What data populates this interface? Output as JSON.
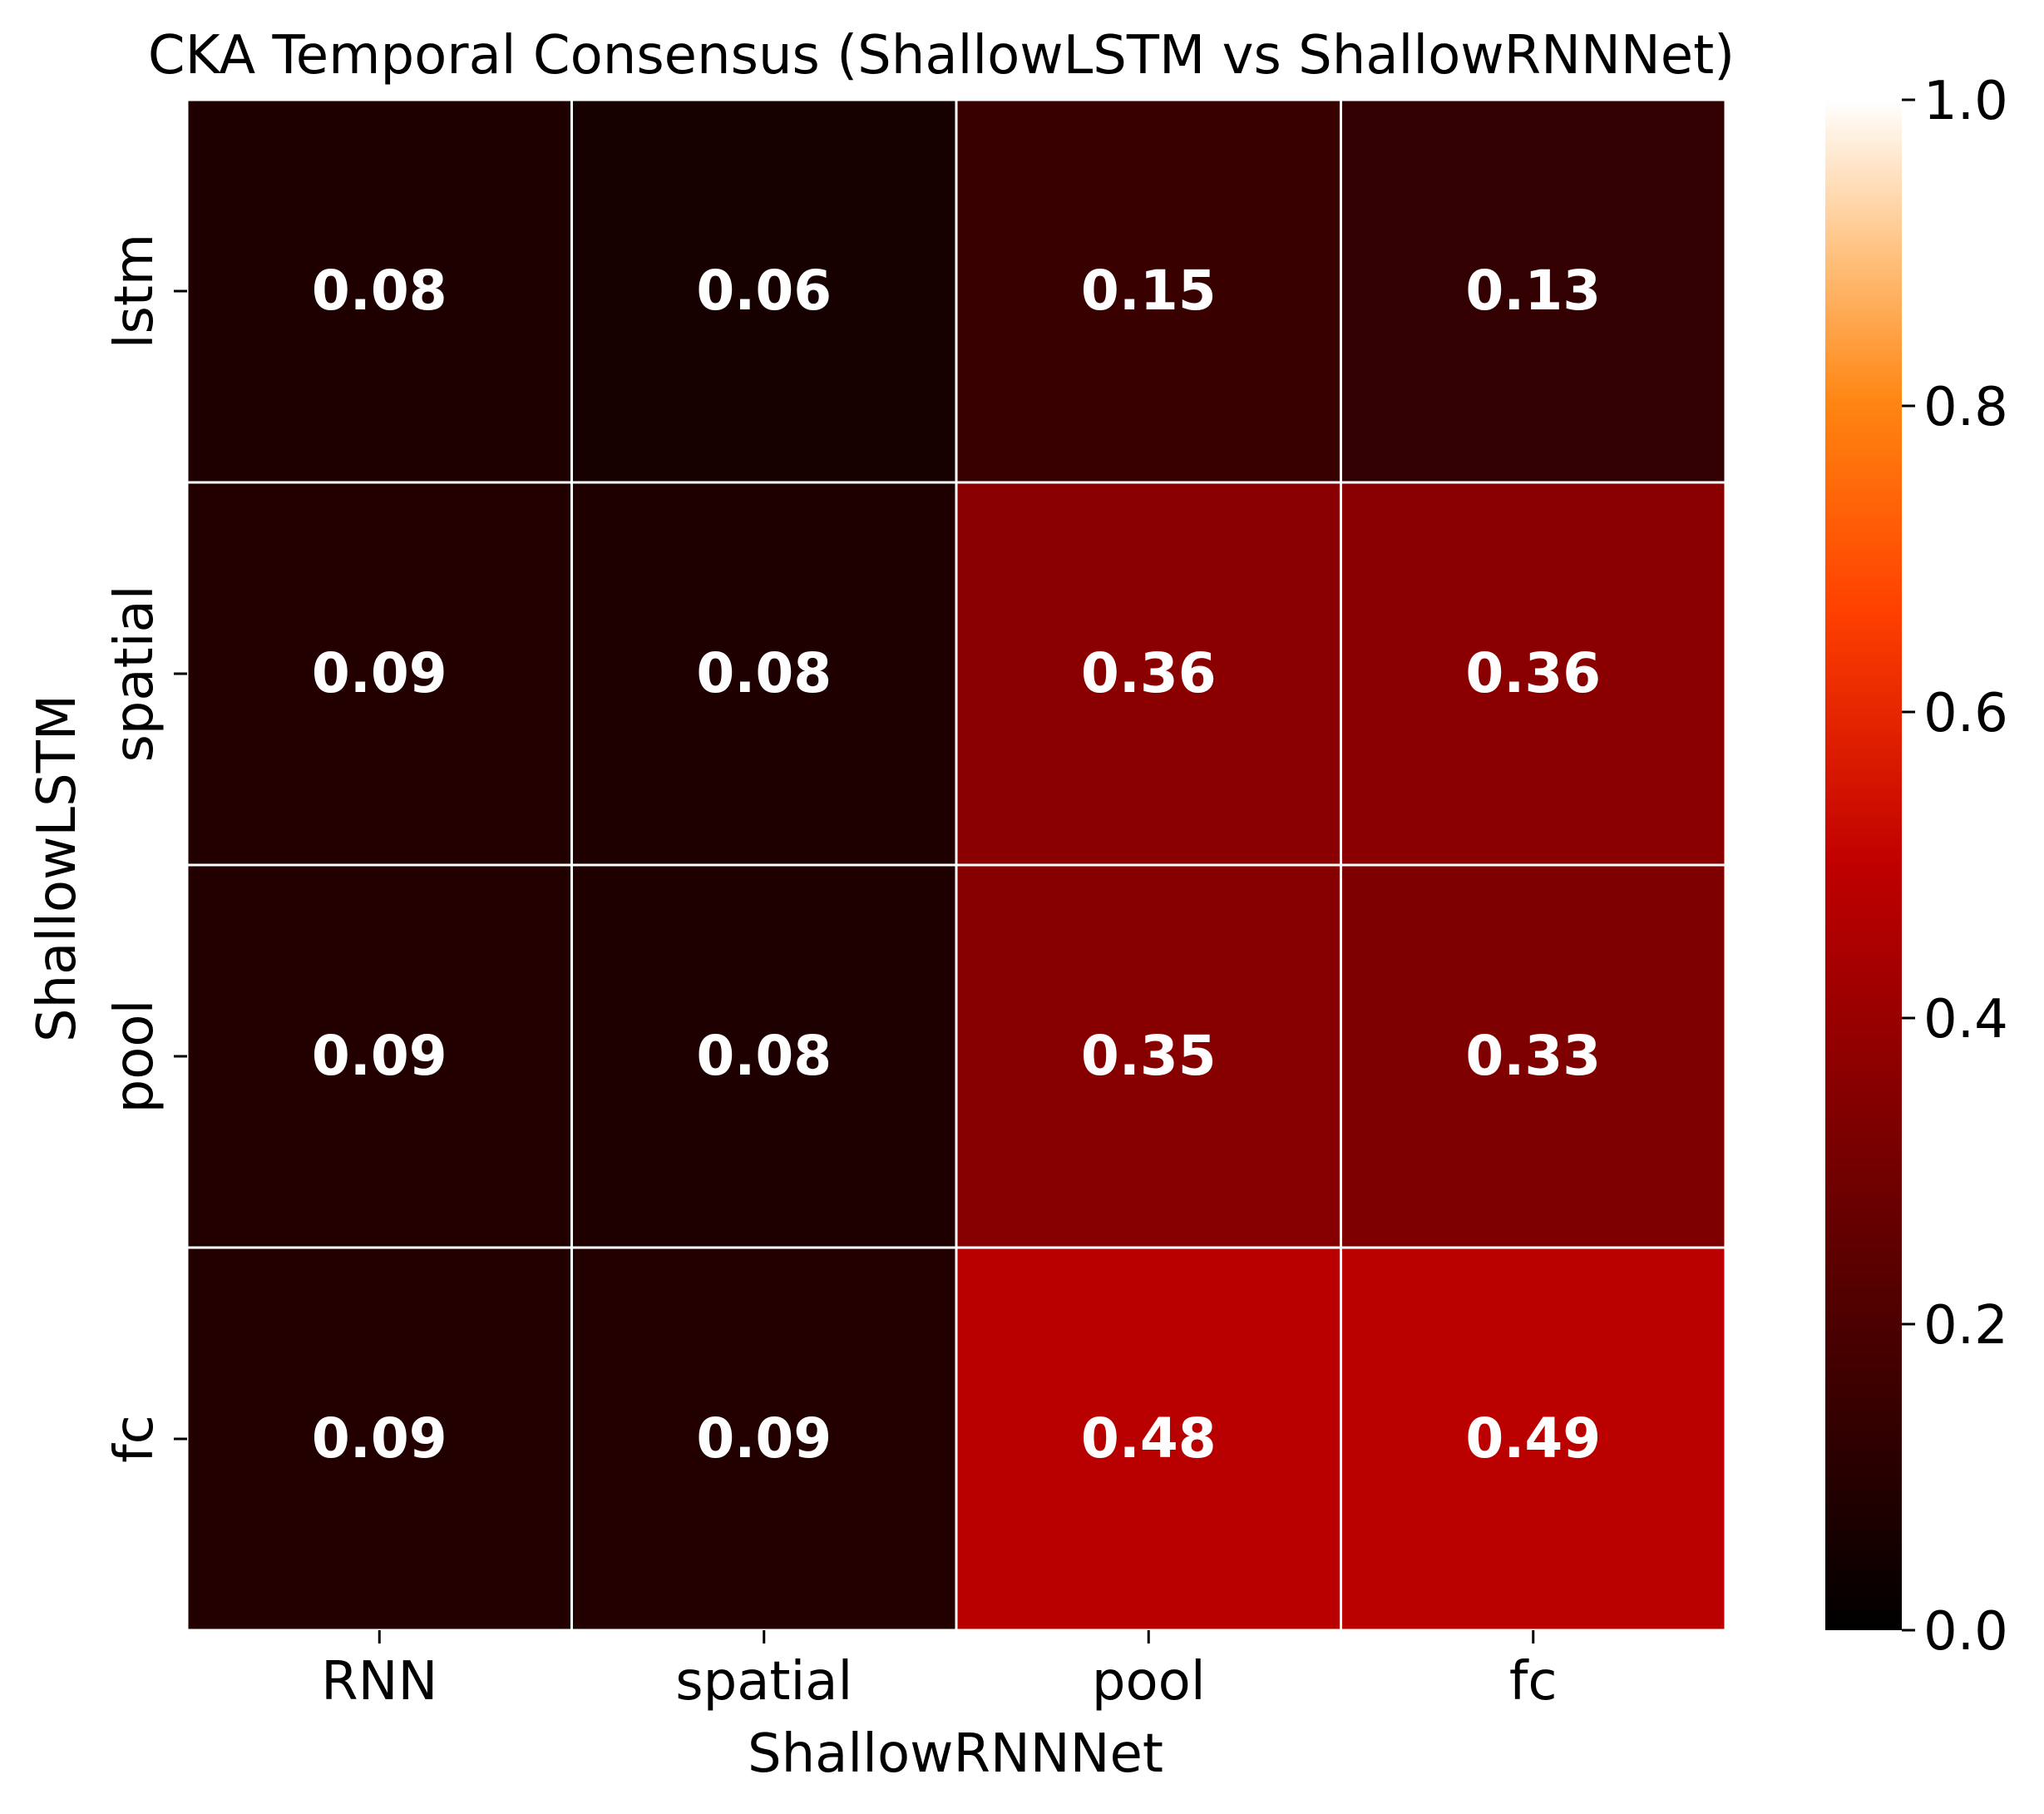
{
  "chart_data": {
    "type": "heatmap",
    "title": "CKA Temporal Consensus (ShallowLSTM vs ShallowRNNNet)",
    "xlabel": "ShallowRNNNet",
    "ylabel": "ShallowLSTM",
    "x_categories": [
      "RNN",
      "spatial",
      "pool",
      "fc"
    ],
    "y_categories": [
      "lstm",
      "spatial",
      "pool",
      "fc"
    ],
    "values": [
      [
        0.08,
        0.06,
        0.15,
        0.13
      ],
      [
        0.09,
        0.08,
        0.36,
        0.36
      ],
      [
        0.09,
        0.08,
        0.35,
        0.33
      ],
      [
        0.09,
        0.09,
        0.48,
        0.49
      ]
    ],
    "value_labels": [
      [
        "0.08",
        "0.06",
        "0.15",
        "0.13"
      ],
      [
        "0.09",
        "0.08",
        "0.36",
        "0.36"
      ],
      [
        "0.09",
        "0.08",
        "0.35",
        "0.33"
      ],
      [
        "0.09",
        "0.09",
        "0.48",
        "0.49"
      ]
    ],
    "colormap": "gist_heat",
    "vmin": 0.0,
    "vmax": 1.0,
    "colorbar_ticks": [
      "0.0",
      "0.2",
      "0.4",
      "0.6",
      "0.8",
      "1.0"
    ],
    "colorbar_tick_values": [
      0.0,
      0.2,
      0.4,
      0.6,
      0.8,
      1.0
    ],
    "cell_border_color": "#ffffff",
    "annotation_color": "#ffffff"
  }
}
